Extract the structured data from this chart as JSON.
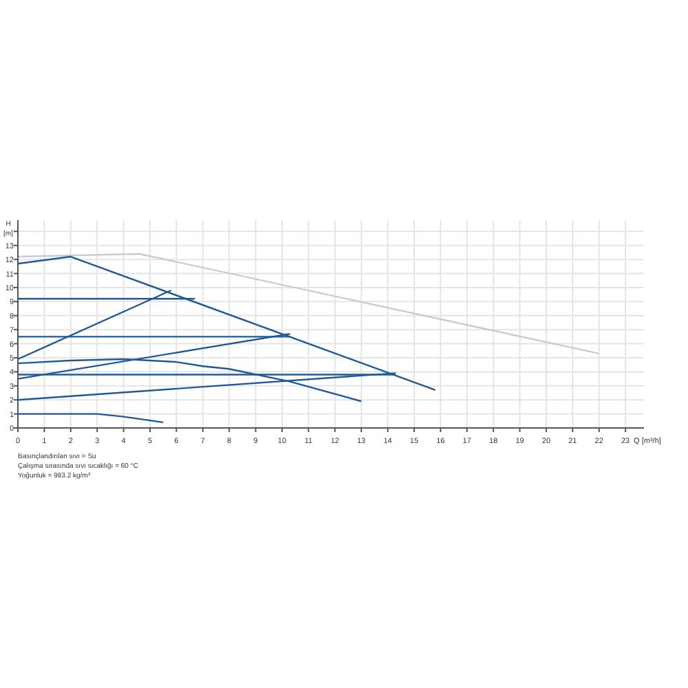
{
  "chart_data": {
    "type": "line",
    "xlabel": "Q [m³/h]",
    "ylabel": "H [m]",
    "xlim": [
      0,
      23.7
    ],
    "ylim": [
      0,
      14.8
    ],
    "xticks": [
      0,
      1,
      2,
      3,
      4,
      5,
      6,
      7,
      8,
      9,
      10,
      11,
      12,
      13,
      14,
      15,
      16,
      17,
      18,
      19,
      20,
      21,
      22,
      23
    ],
    "yticks": [
      0,
      1,
      2,
      3,
      4,
      5,
      6,
      7,
      8,
      9,
      10,
      11,
      12,
      13,
      {
        "value": 14,
        "label": null
      }
    ],
    "grid": true,
    "marker": "none",
    "line_style": "solid",
    "series": [
      {
        "color": "#c5ccd9",
        "x": [
          0,
          4.6,
          22
        ],
        "values": [
          12.2,
          12.4,
          5.3
        ]
      },
      {
        "color": "#1f5a96",
        "x": [
          0,
          2,
          15.8
        ],
        "values": [
          11.7,
          12.2,
          2.7
        ]
      },
      {
        "color": "#1f5a96",
        "x": [
          0,
          6.7
        ],
        "values": [
          9.2,
          9.2
        ]
      },
      {
        "color": "#1f5a96",
        "x": [
          0,
          5.8
        ],
        "values": [
          4.9,
          9.8
        ]
      },
      {
        "color": "#1f5a96",
        "x": [
          0,
          10.3
        ],
        "values": [
          6.5,
          6.5
        ]
      },
      {
        "color": "#1f5a96",
        "x": [
          0,
          10.3
        ],
        "values": [
          3.5,
          6.7
        ]
      },
      {
        "color": "#1f5a96",
        "x": [
          0,
          14.3
        ],
        "values": [
          3.8,
          3.8
        ]
      },
      {
        "color": "#1f5a96",
        "x": [
          0,
          14.3
        ],
        "values": [
          2.0,
          3.9
        ]
      },
      {
        "color": "#1f5a96",
        "x": [
          0,
          2,
          4,
          6,
          7,
          8,
          10.3,
          13
        ],
        "values": [
          4.6,
          4.8,
          4.9,
          4.7,
          4.4,
          4.2,
          3.3,
          1.9
        ]
      },
      {
        "color": "#1f5a96",
        "x": [
          0,
          2,
          3,
          4,
          5.5
        ],
        "values": [
          1.0,
          1.0,
          1.0,
          0.8,
          0.4
        ]
      }
    ],
    "annotations": [
      "Basınçlandırılan sıvı = Su",
      "Çalışma sırasında sıvı sıcaklığı = 60 °C",
      "Yoğunluk = 983.2 kg/m³"
    ]
  }
}
